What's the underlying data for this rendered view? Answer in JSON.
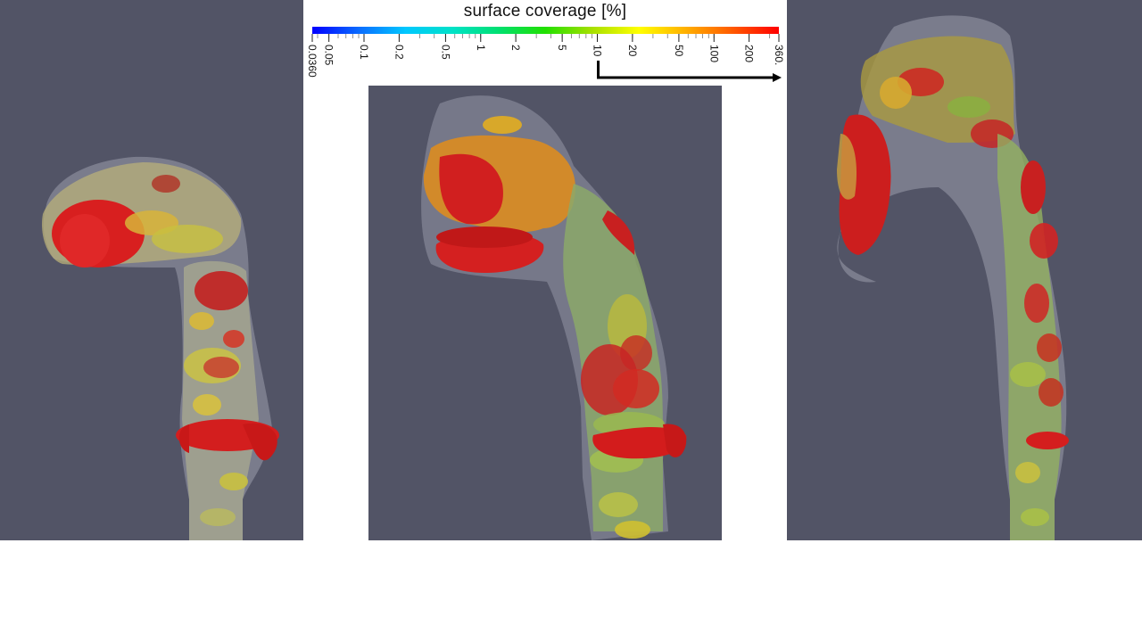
{
  "figure": {
    "panels": [
      "left-view",
      "center-view",
      "right-view"
    ],
    "background_color": "#525466"
  },
  "colorbar": {
    "title": "surface coverage [%]",
    "scale": "log",
    "min_label": "0.0360",
    "max_label": "360.",
    "tick_labels": [
      "0.0360",
      "0.05",
      "0.1",
      "0.2",
      "0.5",
      "1",
      "2",
      "5",
      "10",
      "20",
      "50",
      "100",
      "200",
      "360."
    ],
    "tick_values": [
      0.036,
      0.05,
      0.1,
      0.2,
      0.5,
      1,
      2,
      5,
      10,
      20,
      50,
      100,
      200,
      360
    ],
    "colormap": [
      "#0000ff",
      "#0a6cff",
      "#00c8ff",
      "#00e2c8",
      "#00e070",
      "#22e000",
      "#a8e000",
      "#ffff00",
      "#ffb000",
      "#ff5a00",
      "#ff0000"
    ],
    "arrow_from_label": "10",
    "arrow_direction": "right"
  }
}
